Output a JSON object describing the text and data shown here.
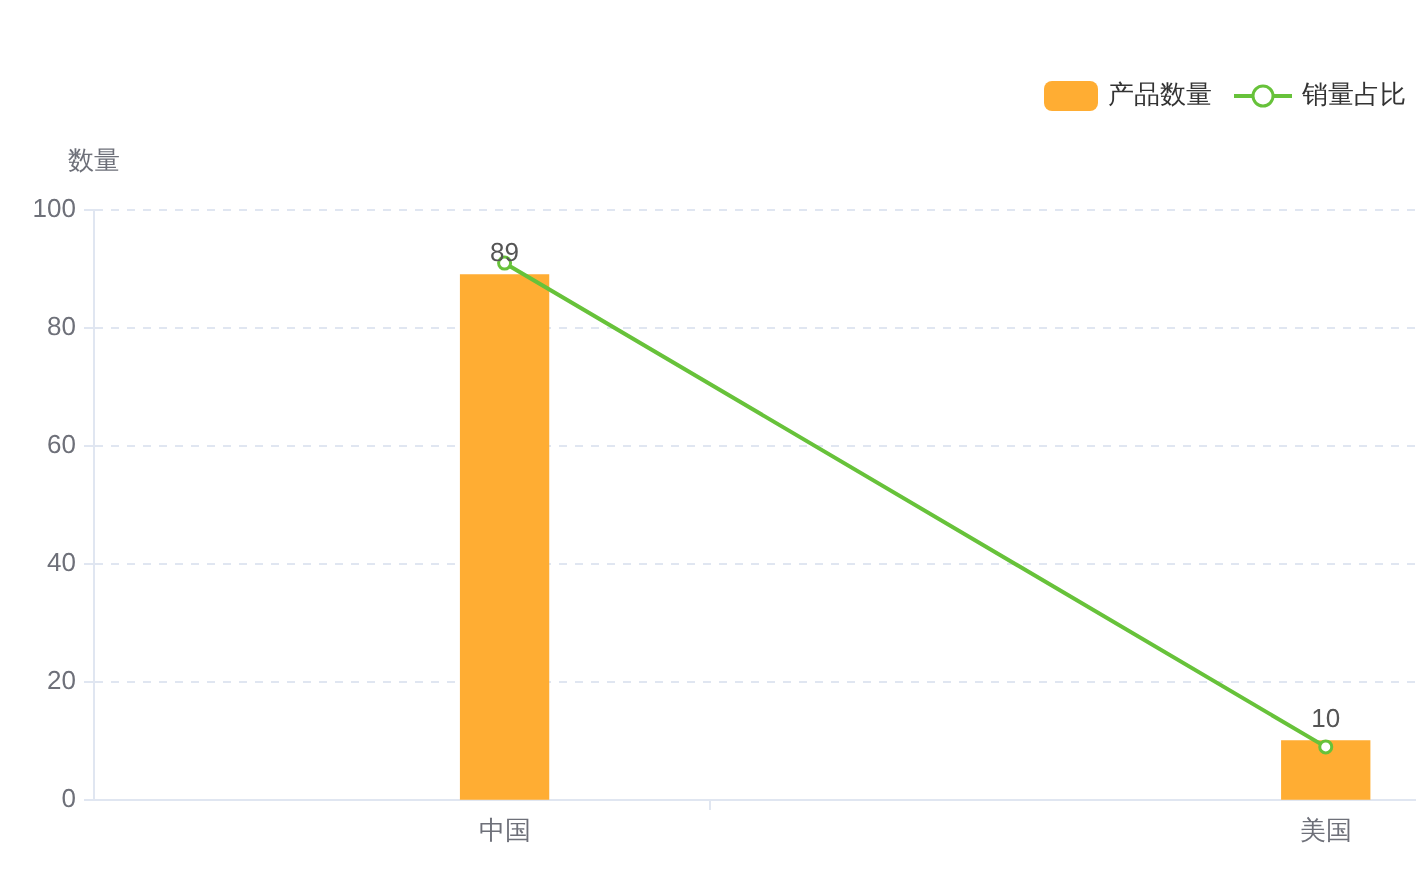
{
  "chart_data": {
    "type": "bar",
    "categories": [
      "中国",
      "美国"
    ],
    "ylabel": "数量",
    "ylim": [
      0,
      100
    ],
    "yticks": [
      0,
      20,
      40,
      60,
      80,
      100
    ],
    "grid": "y",
    "legend": "top right",
    "series": [
      {
        "name": "产品数量",
        "color": "#ffad33",
        "values": [
          89,
          10
        ],
        "value_labels": [
          "89",
          "10"
        ]
      },
      {
        "name": "销量占比",
        "type": "line",
        "color": "#67c23a",
        "values": [
          91,
          9
        ],
        "marker": "circle"
      }
    ]
  }
}
